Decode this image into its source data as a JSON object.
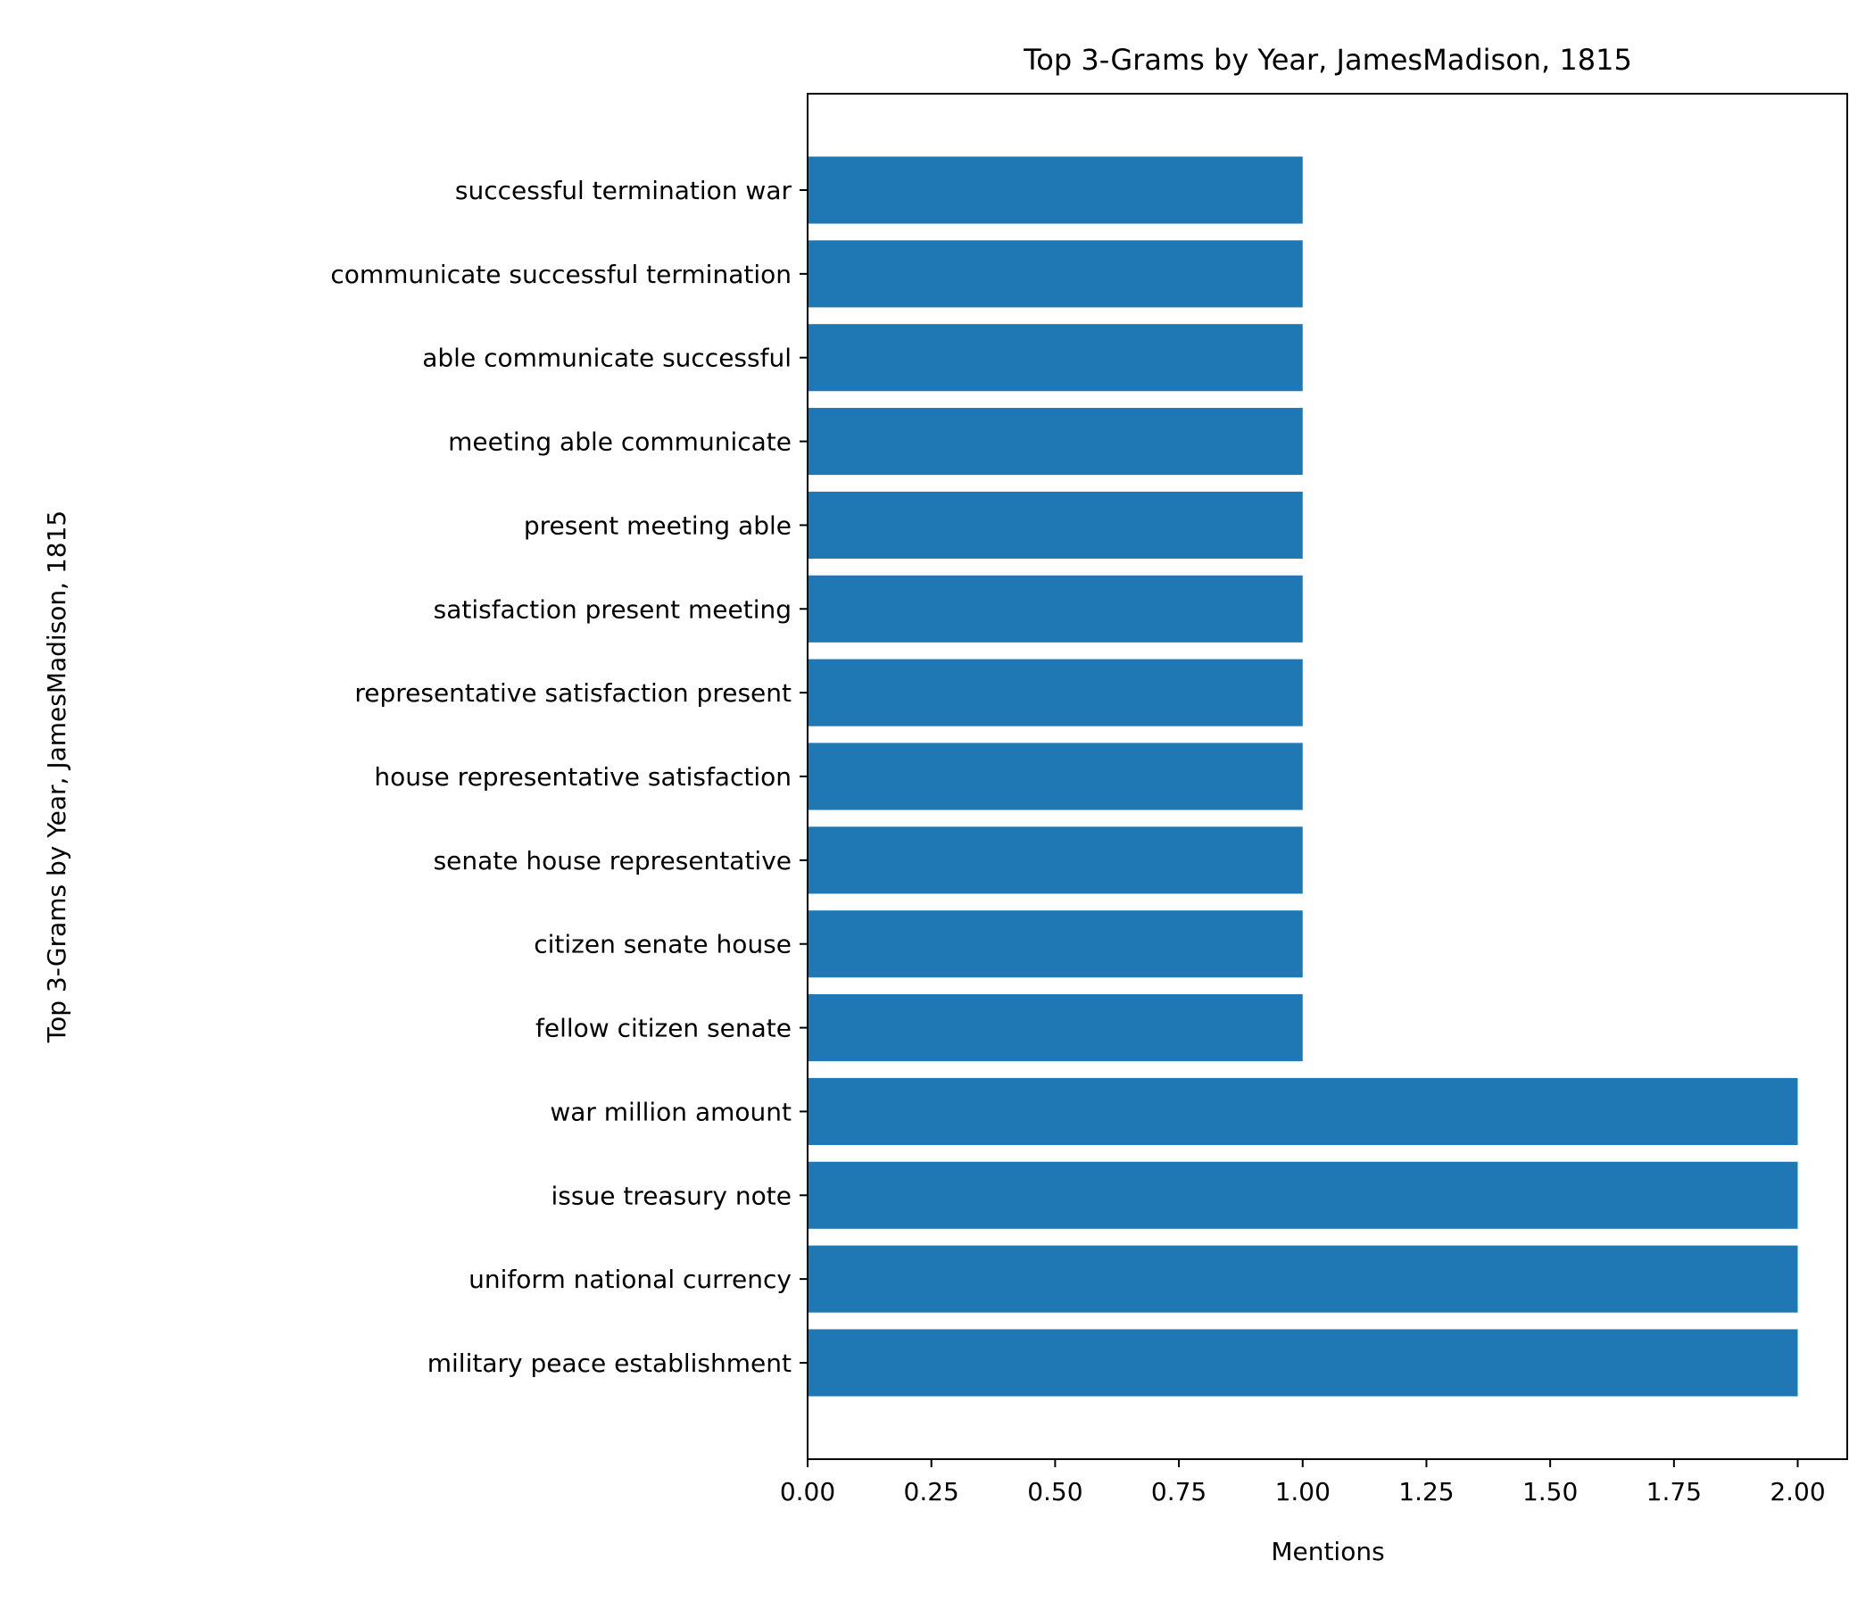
{
  "chart_data": {
    "type": "bar",
    "orientation": "horizontal",
    "title": "Top 3-Grams by Year, JamesMadison, 1815",
    "xlabel": "Mentions",
    "ylabel": "Top 3-Grams by Year, JamesMadison, 1815",
    "categories": [
      "military peace establishment",
      "uniform national currency",
      "issue treasury note",
      "war million amount",
      "fellow citizen senate",
      "citizen senate house",
      "senate house representative",
      "house representative satisfaction",
      "representative satisfaction present",
      "satisfaction present meeting",
      "present meeting able",
      "meeting able communicate",
      "able communicate successful",
      "communicate successful termination",
      "successful termination war"
    ],
    "values": [
      2,
      2,
      2,
      2,
      1,
      1,
      1,
      1,
      1,
      1,
      1,
      1,
      1,
      1,
      1
    ],
    "xlim": [
      0,
      2.1
    ],
    "xticks": [
      "0.00",
      "0.25",
      "0.50",
      "0.75",
      "1.00",
      "1.25",
      "1.50",
      "1.75",
      "2.00"
    ],
    "xtick_values": [
      0,
      0.25,
      0.5,
      0.75,
      1.0,
      1.25,
      1.5,
      1.75,
      2.0
    ],
    "grid": false,
    "legend": "none",
    "bar_color": "#1f77b4"
  }
}
